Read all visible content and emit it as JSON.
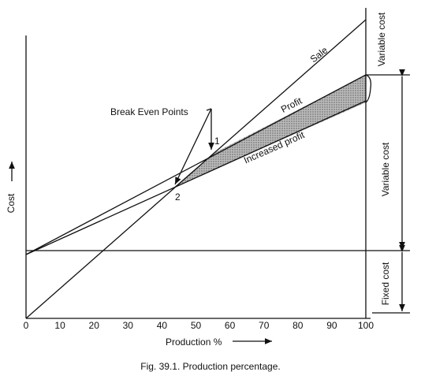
{
  "caption": "Fig. 39.1. Production percentage.",
  "x_axis": {
    "label": "Production %",
    "ticks": [
      0,
      10,
      20,
      30,
      40,
      50,
      60,
      70,
      80,
      90,
      100
    ]
  },
  "y_axis": {
    "label": "Cost"
  },
  "annotations": {
    "break_even": "Break Even Points",
    "point_1": "1",
    "point_2": "2",
    "sale": "Sale",
    "profit": "Profit",
    "increased_profit": "Increased profit"
  },
  "right_labels": {
    "top": "Variable cost",
    "middle": "Variable cost",
    "bottom": "Fixed cost"
  }
}
